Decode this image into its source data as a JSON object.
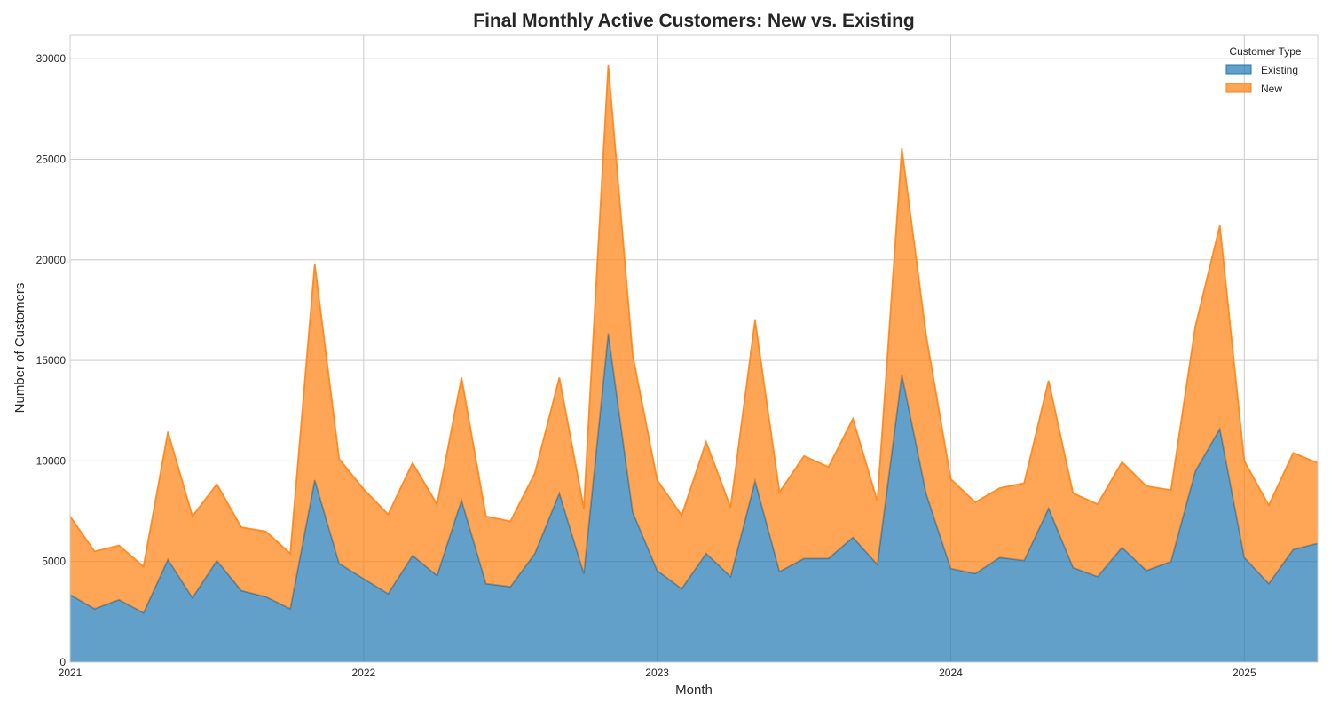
{
  "chart_data": {
    "type": "area",
    "stacked": true,
    "title": "Final Monthly Active Customers: New vs. Existing",
    "xlabel": "Month",
    "ylabel": "Number of Customers",
    "x_start": "2021-01",
    "x_end": "2025-04",
    "x_ticks": [
      "2021",
      "2022",
      "2023",
      "2024",
      "2025"
    ],
    "x": [
      "2021-01",
      "2021-02",
      "2021-03",
      "2021-04",
      "2021-05",
      "2021-06",
      "2021-07",
      "2021-08",
      "2021-09",
      "2021-10",
      "2021-11",
      "2021-12",
      "2022-01",
      "2022-02",
      "2022-03",
      "2022-04",
      "2022-05",
      "2022-06",
      "2022-07",
      "2022-08",
      "2022-09",
      "2022-10",
      "2022-11",
      "2022-12",
      "2023-01",
      "2023-02",
      "2023-03",
      "2023-04",
      "2023-05",
      "2023-06",
      "2023-07",
      "2023-08",
      "2023-09",
      "2023-10",
      "2023-11",
      "2023-12",
      "2024-01",
      "2024-02",
      "2024-03",
      "2024-04",
      "2024-05",
      "2024-06",
      "2024-07",
      "2024-08",
      "2024-09",
      "2024-10",
      "2024-11",
      "2024-12",
      "2025-01",
      "2025-02",
      "2025-03",
      "2025-04"
    ],
    "ylim": [
      0,
      31200
    ],
    "y_ticks": [
      0,
      5000,
      10000,
      15000,
      20000,
      25000,
      30000
    ],
    "grid": true,
    "legend": {
      "title": "Customer Type",
      "position": "top-right"
    },
    "series": [
      {
        "name": "Existing",
        "color": "#1f77b4",
        "values": [
          3350,
          2650,
          3100,
          2450,
          5100,
          3200,
          5050,
          3550,
          3250,
          2650,
          9050,
          4900,
          4150,
          3400,
          5300,
          4300,
          8050,
          3900,
          3750,
          5400,
          8400,
          4400,
          16350,
          7450,
          4550,
          3650,
          5400,
          4250,
          9000,
          4500,
          5150,
          5150,
          6200,
          4850,
          14300,
          8350,
          4650,
          4400,
          5200,
          5050,
          7650,
          4700,
          4250,
          5700,
          4550,
          5000,
          9500,
          11600,
          5200,
          3900,
          5600,
          5900
        ]
      },
      {
        "name": "New",
        "color": "#ff7f0e",
        "values": [
          3900,
          2850,
          2700,
          2300,
          6350,
          4050,
          3800,
          3150,
          3250,
          2750,
          10750,
          5200,
          4450,
          3950,
          4600,
          3550,
          6100,
          3350,
          3250,
          4000,
          5750,
          3250,
          13350,
          7800,
          4500,
          3650,
          5550,
          3450,
          8000,
          3950,
          5100,
          4550,
          5900,
          3150,
          11250,
          7850,
          4450,
          3550,
          3450,
          3850,
          6350,
          3700,
          3600,
          4250,
          4200,
          3550,
          7200,
          10100,
          4800,
          3900,
          4800,
          4000
        ]
      }
    ]
  }
}
